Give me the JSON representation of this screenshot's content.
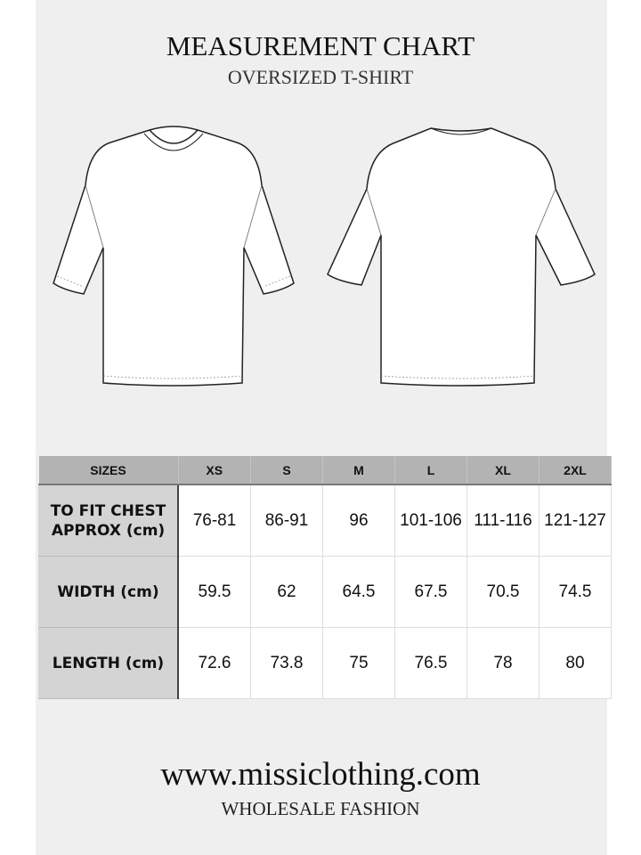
{
  "header": {
    "title": "MEASUREMENT CHART",
    "subtitle": "OVERSIZED T-SHIRT"
  },
  "illustrations": [
    "front-view",
    "back-view"
  ],
  "table": {
    "headers": [
      "SIZES",
      "XS",
      "S",
      "M",
      "L",
      "XL",
      "2XL"
    ],
    "rows": [
      {
        "label": "TO FIT CHEST APPROX (cm)",
        "values": [
          "76-81",
          "86-91",
          "96",
          "101-106",
          "111-116",
          "121-127"
        ]
      },
      {
        "label": "WIDTH (cm)",
        "values": [
          "59.5",
          "62",
          "64.5",
          "67.5",
          "70.5",
          "74.5"
        ]
      },
      {
        "label": "LENGTH (cm)",
        "values": [
          "72.6",
          "73.8",
          "75",
          "76.5",
          "78",
          "80"
        ]
      }
    ]
  },
  "footer": {
    "url": "www.missiclothing.com",
    "tagline": "WHOLESALE FASHION"
  }
}
